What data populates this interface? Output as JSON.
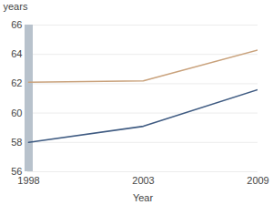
{
  "chart_data": {
    "type": "line",
    "ylabel": "years",
    "xlabel": "Year",
    "categories": [
      "1998",
      "2003",
      "2009"
    ],
    "series": [
      {
        "color": "#c9a27c",
        "values": [
          62.1,
          62.2,
          64.3
        ]
      },
      {
        "color": "#3f5b82",
        "values": [
          58.0,
          59.1,
          61.6
        ]
      }
    ],
    "ylim": [
      56,
      66
    ],
    "yticks": [
      56,
      58,
      60,
      62,
      64,
      66
    ],
    "grid": true
  }
}
